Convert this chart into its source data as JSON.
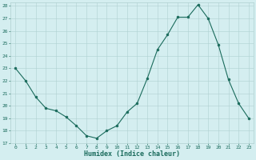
{
  "x": [
    0,
    1,
    2,
    3,
    4,
    5,
    6,
    7,
    8,
    9,
    10,
    11,
    12,
    13,
    14,
    15,
    16,
    17,
    18,
    19,
    20,
    21,
    22,
    23
  ],
  "y": [
    23.0,
    22.0,
    20.7,
    19.8,
    19.6,
    19.1,
    18.4,
    17.6,
    17.4,
    18.0,
    18.4,
    19.5,
    20.2,
    22.2,
    24.5,
    25.7,
    27.1,
    27.1,
    28.1,
    27.0,
    24.9,
    22.1,
    20.2,
    19.0
  ],
  "xlabel": "Humidex (Indice chaleur)",
  "ylim": [
    17,
    28
  ],
  "xlim": [
    -0.5,
    23.5
  ],
  "yticks": [
    17,
    18,
    19,
    20,
    21,
    22,
    23,
    24,
    25,
    26,
    27,
    28
  ],
  "xticks": [
    0,
    1,
    2,
    3,
    4,
    5,
    6,
    7,
    8,
    9,
    10,
    11,
    12,
    13,
    14,
    15,
    16,
    17,
    18,
    19,
    20,
    21,
    22,
    23
  ],
  "line_color": "#1a6b5c",
  "marker_color": "#1a6b5c",
  "bg_color": "#d4eef0",
  "grid_color": "#b0d0d0",
  "label_color": "#1a6b5c",
  "tick_fontsize": 4.5,
  "xlabel_fontsize": 6.0,
  "linewidth": 0.8,
  "markersize": 2.0
}
